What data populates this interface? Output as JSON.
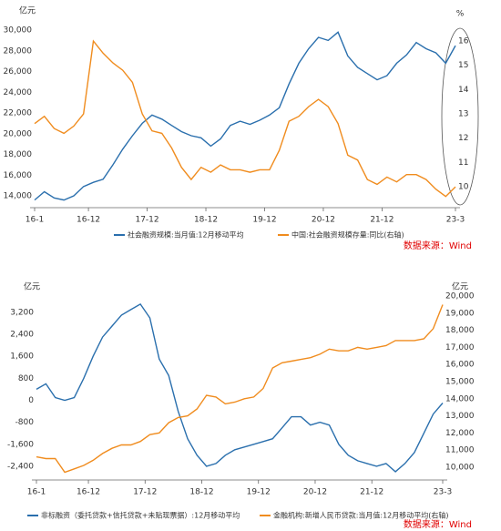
{
  "chart_data": [
    {
      "type": "line",
      "y_label": "亿元",
      "y2_label": "%",
      "source": "数据来源：Wind",
      "x": [
        0,
        2,
        4,
        6,
        8,
        10,
        12,
        14,
        16,
        18,
        20,
        22,
        24,
        26,
        28,
        30,
        32,
        34,
        36,
        38,
        40,
        42,
        44,
        46,
        48,
        50,
        52,
        54,
        56,
        58,
        60,
        62,
        64,
        66,
        68,
        70,
        72,
        74,
        76,
        78,
        80,
        82,
        84,
        86
      ],
      "xlim": [
        0,
        86
      ],
      "xticks": [
        {
          "value": 0,
          "label": "16-1"
        },
        {
          "value": 11,
          "label": "16-12"
        },
        {
          "value": 23,
          "label": "17-12"
        },
        {
          "value": 35,
          "label": "18-12"
        },
        {
          "value": 47,
          "label": "19-12"
        },
        {
          "value": 59,
          "label": "20-12"
        },
        {
          "value": 71,
          "label": "21-12"
        },
        {
          "value": 86,
          "label": "23-3"
        }
      ],
      "ylim": [
        12860,
        30440
      ],
      "yticks": [
        {
          "value": 14000,
          "label": "14,000"
        },
        {
          "value": 16000,
          "label": "16,000"
        },
        {
          "value": 18000,
          "label": "18,000"
        },
        {
          "value": 20000,
          "label": "20,000"
        },
        {
          "value": 22000,
          "label": "22,000"
        },
        {
          "value": 24000,
          "label": "24,000"
        },
        {
          "value": 26000,
          "label": "26,000"
        },
        {
          "value": 28000,
          "label": "28,000"
        },
        {
          "value": 30000,
          "label": "30,000"
        }
      ],
      "y2lim": [
        9.14,
        16.64
      ],
      "y2ticks": [
        10,
        11,
        12,
        13,
        14,
        15,
        16
      ],
      "series": [
        {
          "name": "社会融资规模:当月值:12月移动平均",
          "color": "#2a6fad",
          "values": [
            13600,
            14400,
            13800,
            13600,
            14000,
            14900,
            15300,
            15600,
            17000,
            18500,
            19800,
            21000,
            21800,
            21400,
            20800,
            20200,
            19800,
            19600,
            18800,
            19500,
            20800,
            21200,
            20900,
            21300,
            21800,
            22500,
            24800,
            26800,
            28200,
            29300,
            29000,
            29800,
            27500,
            26400,
            25800,
            25200,
            25600,
            26800,
            27600,
            28800,
            28200,
            27800,
            26800,
            28500
          ]
        },
        {
          "name": "中国:社会融资规模存量:同比(右轴)",
          "color": "#f08c1e",
          "axis": "y2",
          "values": [
            12.6,
            12.9,
            12.4,
            12.2,
            12.5,
            13.0,
            16.0,
            15.5,
            15.1,
            14.8,
            14.3,
            13.0,
            12.3,
            12.2,
            11.6,
            10.8,
            10.3,
            10.8,
            10.6,
            10.9,
            10.7,
            10.7,
            10.6,
            10.7,
            10.7,
            11.5,
            12.7,
            12.9,
            13.3,
            13.6,
            13.3,
            12.6,
            11.3,
            11.1,
            10.3,
            10.1,
            10.4,
            10.2,
            10.5,
            10.5,
            10.3,
            9.9,
            9.6,
            10.0
          ]
        }
      ]
    },
    {
      "type": "line",
      "y_label": "亿元",
      "y2_label": "亿元",
      "source": "数据来源：Wind",
      "x": [
        0,
        2,
        4,
        6,
        8,
        10,
        12,
        14,
        16,
        18,
        20,
        22,
        24,
        26,
        28,
        30,
        32,
        34,
        36,
        38,
        40,
        42,
        44,
        46,
        48,
        50,
        52,
        54,
        56,
        58,
        60,
        62,
        64,
        66,
        68,
        70,
        72,
        74,
        76,
        78,
        80,
        82,
        84,
        86
      ],
      "xlim": [
        0,
        86
      ],
      "xticks": [
        {
          "value": 0,
          "label": "16-1"
        },
        {
          "value": 11,
          "label": "16-12"
        },
        {
          "value": 23,
          "label": "17-12"
        },
        {
          "value": 35,
          "label": "18-12"
        },
        {
          "value": 47,
          "label": "19-12"
        },
        {
          "value": 59,
          "label": "20-12"
        },
        {
          "value": 71,
          "label": "21-12"
        },
        {
          "value": 86,
          "label": "23-3"
        }
      ],
      "ylim": [
        -2900,
        3960
      ],
      "yticks": [
        {
          "value": -2400,
          "label": "-2,400"
        },
        {
          "value": -1600,
          "label": "-1,600"
        },
        -800,
        0,
        800,
        {
          "value": 1600,
          "label": "1,600"
        },
        {
          "value": 2400,
          "label": "2,400"
        },
        {
          "value": 3200,
          "label": "3,200"
        }
      ],
      "y2lim": [
        9250,
        20270
      ],
      "y2ticks": [
        {
          "value": 10000,
          "label": "10,000"
        },
        {
          "value": 11000,
          "label": "11,000"
        },
        {
          "value": 12000,
          "label": "12,000"
        },
        {
          "value": 13000,
          "label": "13,000"
        },
        {
          "value": 14000,
          "label": "14,000"
        },
        {
          "value": 15000,
          "label": "15,000"
        },
        {
          "value": 16000,
          "label": "16,000"
        },
        {
          "value": 17000,
          "label": "17,000"
        },
        {
          "value": 18000,
          "label": "18,000"
        },
        {
          "value": 19000,
          "label": "19,000"
        },
        {
          "value": 20000,
          "label": "20,000"
        }
      ],
      "series": [
        {
          "name": "非标融资（委托贷款+信托贷款+未贴现票据）:12月移动平均",
          "color": "#2a6fad",
          "values": [
            400,
            600,
            100,
            0,
            100,
            800,
            1600,
            2300,
            2700,
            3100,
            3300,
            3500,
            3000,
            1500,
            900,
            -400,
            -1400,
            -2000,
            -2400,
            -2300,
            -2000,
            -1800,
            -1700,
            -1600,
            -1500,
            -1400,
            -1000,
            -600,
            -600,
            -900,
            -800,
            -900,
            -1600,
            -2000,
            -2200,
            -2300,
            -2400,
            -2300,
            -2600,
            -2300,
            -1900,
            -1200,
            -500,
            -100
          ]
        },
        {
          "name": "金融机构:新增人民币贷款:当月值:12月移动平均(右轴)",
          "color": "#f08c1e",
          "axis": "y2",
          "values": [
            10600,
            10500,
            10500,
            9700,
            9900,
            10100,
            10400,
            10800,
            11100,
            11300,
            11300,
            11500,
            11900,
            12000,
            12600,
            12900,
            13000,
            13400,
            14200,
            14100,
            13700,
            13800,
            14000,
            14100,
            14600,
            15800,
            16100,
            16200,
            16300,
            16400,
            16600,
            16900,
            16800,
            16800,
            17000,
            16900,
            17000,
            17100,
            17400,
            17400,
            17400,
            17500,
            18100,
            19500
          ]
        }
      ]
    }
  ]
}
